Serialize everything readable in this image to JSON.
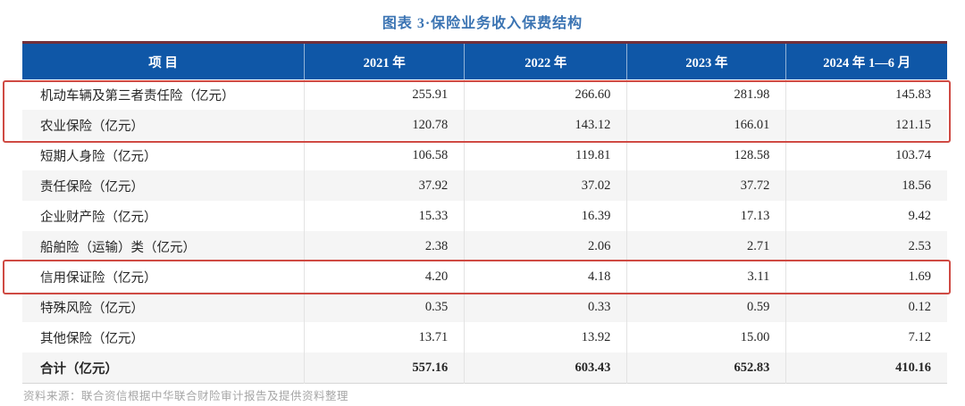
{
  "title": "图表 3·保险业务收入保费结构",
  "table": {
    "columns": [
      "项  目",
      "2021 年",
      "2022 年",
      "2023 年",
      "2024 年 1—6 月"
    ],
    "rows": [
      {
        "label": "机动车辆及第三者责任险（亿元）",
        "values": [
          "255.91",
          "266.60",
          "281.98",
          "145.83"
        ],
        "highlighted": true,
        "is_total": false
      },
      {
        "label": "农业保险（亿元）",
        "values": [
          "120.78",
          "143.12",
          "166.01",
          "121.15"
        ],
        "highlighted": true,
        "is_total": false
      },
      {
        "label": "短期人身险（亿元）",
        "values": [
          "106.58",
          "119.81",
          "128.58",
          "103.74"
        ],
        "highlighted": false,
        "is_total": false
      },
      {
        "label": "责任保险（亿元）",
        "values": [
          "37.92",
          "37.02",
          "37.72",
          "18.56"
        ],
        "highlighted": false,
        "is_total": false
      },
      {
        "label": "企业财产险（亿元）",
        "values": [
          "15.33",
          "16.39",
          "17.13",
          "9.42"
        ],
        "highlighted": false,
        "is_total": false
      },
      {
        "label": "船舶险（运输）类（亿元）",
        "values": [
          "2.38",
          "2.06",
          "2.71",
          "2.53"
        ],
        "highlighted": false,
        "is_total": false
      },
      {
        "label": "信用保证险（亿元）",
        "values": [
          "4.20",
          "4.18",
          "3.11",
          "1.69"
        ],
        "highlighted": true,
        "is_total": false
      },
      {
        "label": "特殊风险（亿元）",
        "values": [
          "0.35",
          "0.33",
          "0.59",
          "0.12"
        ],
        "highlighted": false,
        "is_total": false
      },
      {
        "label": "其他保险（亿元）",
        "values": [
          "13.71",
          "13.92",
          "15.00",
          "7.12"
        ],
        "highlighted": false,
        "is_total": false
      },
      {
        "label": "合计（亿元）",
        "values": [
          "557.16",
          "603.43",
          "652.83",
          "410.16"
        ],
        "highlighted": false,
        "is_total": true
      }
    ]
  },
  "source_note": "资料来源：联合资信根据中华联合财险审计报告及提供资料整理",
  "colors": {
    "header_background": "#0f57a7",
    "header_text": "#ffffff",
    "title_text": "#3b74b3",
    "table_top_border": "#73303a",
    "highlight_border": "#cf4a43",
    "alt_row_background": "#f5f5f5",
    "body_text": "#262626",
    "source_text": "#a6a6a6"
  }
}
